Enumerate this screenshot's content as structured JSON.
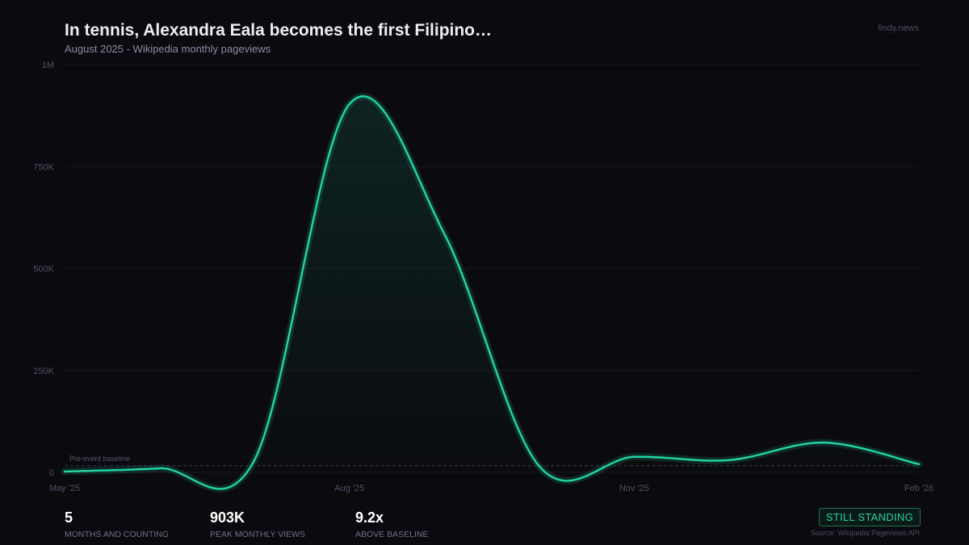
{
  "header": {
    "title": "In tennis, Alexandra Eala becomes the first Filipino…",
    "subtitle": "August 2025  -  Wikipedia monthly pageviews",
    "brand": "lindy.news"
  },
  "chart_data": {
    "type": "line",
    "title": "In tennis, Alexandra Eala becomes the first Filipino…",
    "x": [
      "May '25",
      "Jun '25",
      "Jul '25",
      "Aug '25",
      "Sep '25",
      "Oct '25",
      "Nov '25",
      "Dec '25",
      "Jan '26",
      "Feb '26"
    ],
    "values": [
      2000,
      10000,
      30000,
      903000,
      585000,
      15000,
      38000,
      30000,
      73000,
      20000
    ],
    "x_tick_labels": [
      "May '25",
      "Aug '25",
      "Nov '25",
      "Feb '26"
    ],
    "y_ticks": [
      0,
      250000,
      500000,
      750000,
      1000000
    ],
    "y_tick_labels": [
      "0",
      "250K",
      "500K",
      "750K",
      "1M"
    ],
    "ylim": [
      0,
      1000000
    ],
    "grid": true,
    "baseline": {
      "label": "Pre-event baseline",
      "value": 16000
    },
    "colors": {
      "line": "#22d3a4",
      "background": "#0b0b0f",
      "grid": "#16161f"
    }
  },
  "stats": [
    {
      "value": "5",
      "label": "MONTHS AND COUNTING"
    },
    {
      "value": "903K",
      "label": "PEAK MONTHLY VIEWS"
    },
    {
      "value": "9.2x",
      "label": "ABOVE BASELINE"
    }
  ],
  "badge": "STILL STANDING",
  "source": "Source: Wikipedia Pageviews API"
}
